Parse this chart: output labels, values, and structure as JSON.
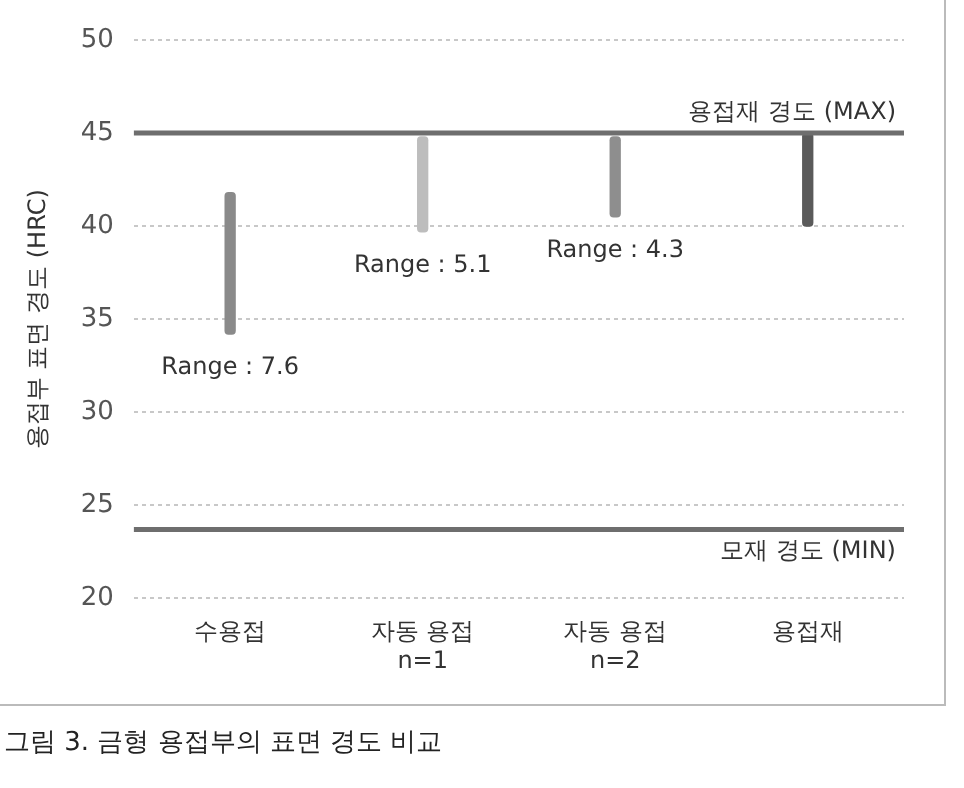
{
  "chart_data": {
    "type": "bar",
    "title": "그림 3. 금형 용접부의 표면 경도 비교",
    "ylabel": "용접부 표면 경도 (HRC)",
    "categories": [
      "수용접",
      "자동 용접\nn=1",
      "자동 용접\nn=2",
      "용접재"
    ],
    "base": [
      34.2,
      39.7,
      40.5,
      40
    ],
    "values": [
      7.6,
      5.1,
      4.3,
      5
    ],
    "colors": [
      "#8a8a8a",
      "#bdbdbd",
      "#8e8e8e",
      "#5a5a5a"
    ],
    "ylim": [
      20,
      50
    ],
    "yticks": [
      20,
      25,
      30,
      35,
      40,
      45,
      50
    ],
    "grid": "y",
    "legend": false,
    "ref_lines": [
      {
        "axis": "y",
        "value": 45,
        "label": "용접재 경도 (MAX)",
        "color": "#6e6e6e"
      },
      {
        "axis": "y",
        "value": 23.7,
        "label": "모재 경도 (MIN)",
        "color": "#6e6e6e"
      }
    ],
    "annotations": [
      "Range : 7.6",
      "Range : 5.1",
      "Range : 4.3"
    ]
  }
}
